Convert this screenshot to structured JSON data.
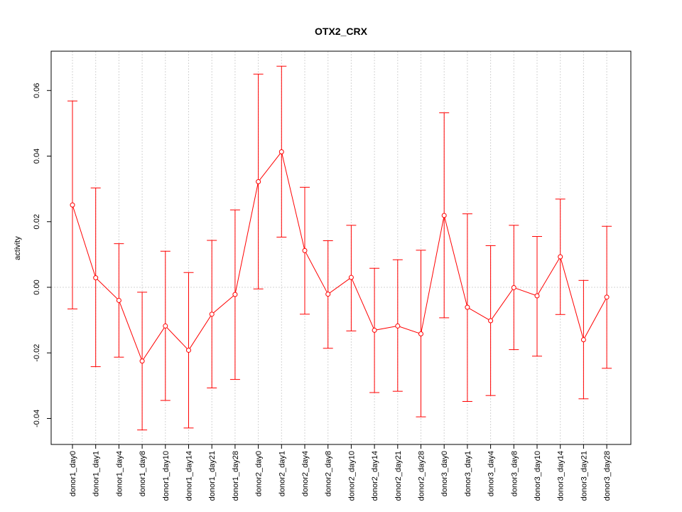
{
  "chart_data": {
    "type": "line",
    "title": "OTX2_CRX",
    "xlabel": "",
    "ylabel": "activity",
    "ylim": [
      -0.048,
      0.072
    ],
    "yticks": [
      -0.04,
      -0.02,
      0.0,
      0.02,
      0.04,
      0.06
    ],
    "ytick_labels": [
      "-0.04",
      "-0.02",
      "0.00",
      "0.02",
      "0.04",
      "0.06"
    ],
    "grid": true,
    "color": "#ff0000",
    "categories": [
      "donor1_day0",
      "donor1_day1",
      "donor1_day4",
      "donor1_day8",
      "donor1_day10",
      "donor1_day14",
      "donor1_day21",
      "donor1_day28",
      "donor2_day0",
      "donor2_day1",
      "donor2_day4",
      "donor2_day8",
      "donor2_day10",
      "donor2_day14",
      "donor2_day21",
      "donor2_day28",
      "donor3_day0",
      "donor3_day1",
      "donor3_day4",
      "donor3_day8",
      "donor3_day10",
      "donor3_day14",
      "donor3_day21",
      "donor3_day28"
    ],
    "series": [
      {
        "values": [
          0.0251,
          0.0029,
          -0.004,
          -0.0225,
          -0.0118,
          -0.0192,
          -0.0082,
          -0.0022,
          0.0322,
          0.0413,
          0.0112,
          -0.0021,
          0.003,
          -0.0131,
          -0.0118,
          -0.0142,
          0.0219,
          -0.0061,
          -0.0102,
          -0.0001,
          -0.0026,
          0.0093,
          -0.016,
          -0.003
        ],
        "upper": [
          0.0568,
          0.0303,
          0.0133,
          -0.0015,
          0.011,
          0.0045,
          0.0143,
          0.0236,
          0.065,
          0.0674,
          0.0305,
          0.0142,
          0.0189,
          0.0058,
          0.0084,
          0.0113,
          0.0532,
          0.0224,
          0.0127,
          0.0189,
          0.0155,
          0.0269,
          0.0021,
          0.0186
        ],
        "lower": [
          -0.0066,
          -0.0242,
          -0.0213,
          -0.0435,
          -0.0345,
          -0.0429,
          -0.0307,
          -0.0281,
          -0.0005,
          0.0153,
          -0.0082,
          -0.0186,
          -0.0133,
          -0.0321,
          -0.0317,
          -0.0395,
          -0.0093,
          -0.0348,
          -0.033,
          -0.019,
          -0.021,
          -0.0083,
          -0.034,
          -0.0247
        ]
      }
    ]
  }
}
